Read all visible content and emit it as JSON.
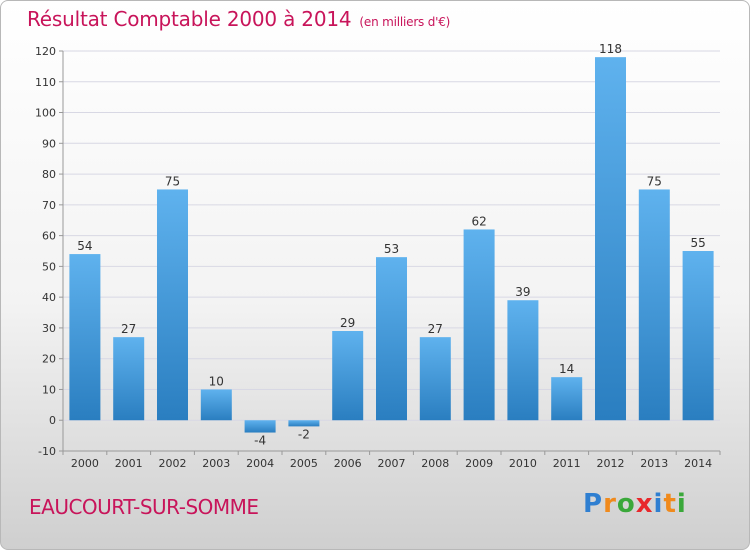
{
  "header": {
    "title": "Résultat Comptable 2000 à 2014",
    "subtitle": "(en milliers d'€)"
  },
  "commune": "EAUCOURT-SUR-SOMME",
  "logo": {
    "text": "Proxiti",
    "letters": [
      {
        "ch": "P",
        "color": "#2f7fd1"
      },
      {
        "ch": "r",
        "color": "#f08a1c"
      },
      {
        "ch": "o",
        "color": "#3aa83a"
      },
      {
        "ch": "x",
        "color": "#e8282b"
      },
      {
        "ch": "i",
        "color": "#2f7fd1"
      },
      {
        "ch": "t",
        "color": "#f08a1c"
      },
      {
        "ch": "i",
        "color": "#3aa83a"
      }
    ]
  },
  "colors": {
    "bar_top": "#5fb2ee",
    "bar_bottom": "#2a7ec0",
    "text": "#c8145a",
    "grid": "#d8d8e4"
  },
  "chart_data": {
    "type": "bar",
    "categories": [
      "2000",
      "2001",
      "2002",
      "2003",
      "2004",
      "2005",
      "2006",
      "2007",
      "2008",
      "2009",
      "2010",
      "2011",
      "2012",
      "2013",
      "2014"
    ],
    "values": [
      54,
      27,
      75,
      10,
      -4,
      -2,
      29,
      53,
      27,
      62,
      39,
      14,
      118,
      75,
      55
    ],
    "ylim": [
      -10,
      120
    ],
    "yticks": [
      -10,
      0,
      10,
      20,
      30,
      40,
      50,
      60,
      70,
      80,
      90,
      100,
      110,
      120
    ],
    "grid": "horizontal",
    "legend": "none"
  }
}
